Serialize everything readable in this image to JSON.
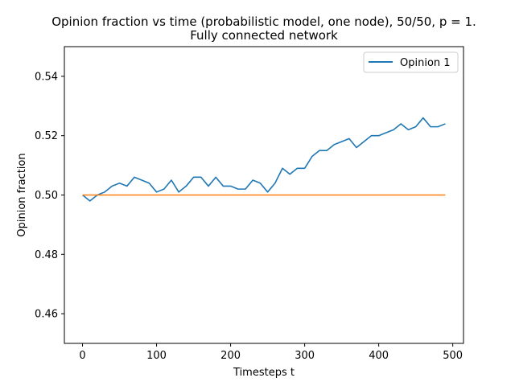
{
  "chart_data": {
    "type": "line",
    "title": "Opinion fraction vs time (probabilistic model, one node), 50/50, p = 1.",
    "subtitle": "Fully connected network",
    "xlabel": "Timesteps t",
    "ylabel": "Opinion fraction",
    "xlim": [
      -24.5,
      514.5
    ],
    "ylim": [
      0.45,
      0.55
    ],
    "xticks": [
      0,
      100,
      200,
      300,
      400,
      500
    ],
    "yticks": [
      0.46,
      0.48,
      0.5,
      0.52,
      0.54
    ],
    "xtick_labels": [
      "0",
      "100",
      "200",
      "300",
      "400",
      "500"
    ],
    "ytick_labels": [
      "0.46",
      "0.48",
      "0.50",
      "0.52",
      "0.54"
    ],
    "grid": false,
    "legend_position": "top-right",
    "series": [
      {
        "name": "Opinion 1",
        "color": "#1f77b4",
        "in_legend": true,
        "x": [
          0,
          10,
          20,
          30,
          40,
          50,
          60,
          70,
          80,
          90,
          100,
          110,
          120,
          130,
          140,
          150,
          160,
          170,
          180,
          190,
          200,
          210,
          220,
          230,
          240,
          250,
          260,
          270,
          280,
          290,
          300,
          310,
          320,
          330,
          340,
          350,
          360,
          370,
          380,
          390,
          400,
          410,
          420,
          430,
          440,
          450,
          460,
          470,
          480,
          490
        ],
        "values": [
          0.5,
          0.498,
          0.5,
          0.501,
          0.503,
          0.504,
          0.503,
          0.506,
          0.505,
          0.504,
          0.501,
          0.502,
          0.505,
          0.501,
          0.503,
          0.506,
          0.506,
          0.503,
          0.506,
          0.503,
          0.503,
          0.502,
          0.502,
          0.505,
          0.504,
          0.501,
          0.504,
          0.509,
          0.507,
          0.509,
          0.509,
          0.513,
          0.515,
          0.515,
          0.517,
          0.518,
          0.519,
          0.516,
          0.518,
          0.52,
          0.52,
          0.521,
          0.522,
          0.524,
          0.522,
          0.523,
          0.526,
          0.523,
          0.523,
          0.524
        ]
      },
      {
        "color": "#ff7f0e",
        "in_legend": false,
        "x": [
          0,
          490
        ],
        "values": [
          0.5,
          0.5
        ]
      }
    ]
  }
}
